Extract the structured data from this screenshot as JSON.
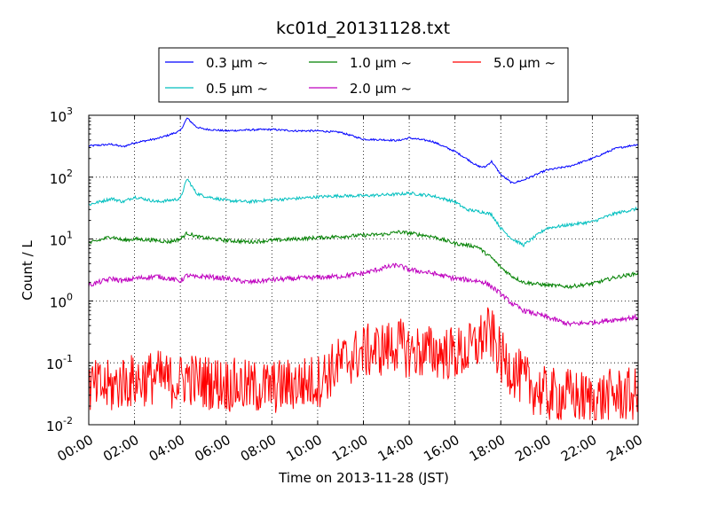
{
  "chart_data": {
    "type": "line",
    "title": "kc01d_20131128.txt",
    "xlabel": "Time on 2013-11-28 (JST)",
    "ylabel": "Count / L",
    "xlim": [
      "00:00",
      "24:00"
    ],
    "ylim": [
      0.01,
      1000
    ],
    "y_scale": "log",
    "grid": true,
    "legend_position": "top-center, above plot",
    "x_tick_labels": [
      "00:00",
      "02:00",
      "04:00",
      "06:00",
      "08:00",
      "10:00",
      "12:00",
      "14:00",
      "16:00",
      "18:00",
      "20:00",
      "22:00",
      "24:00"
    ],
    "y_tick_labels": [
      {
        "base": "10",
        "exp": "-2"
      },
      {
        "base": "10",
        "exp": "-1"
      },
      {
        "base": "10",
        "exp": "0"
      },
      {
        "base": "10",
        "exp": "1"
      },
      {
        "base": "10",
        "exp": "2"
      },
      {
        "base": "10",
        "exp": "3"
      }
    ],
    "x_hours": [
      0,
      1,
      1.5,
      2,
      3,
      3.5,
      4,
      4.3,
      4.7,
      5,
      6,
      7,
      8,
      9,
      10,
      11,
      12,
      13,
      13.5,
      14,
      15,
      16,
      16.5,
      17,
      17.3,
      17.6,
      18,
      18.5,
      19,
      20,
      21,
      22,
      23,
      24
    ],
    "series": [
      {
        "name": "0.3 μm ~",
        "color": "#0000ff",
        "values": [
          320,
          340,
          310,
          360,
          420,
          480,
          560,
          900,
          650,
          600,
          560,
          580,
          590,
          560,
          560,
          530,
          410,
          400,
          390,
          430,
          380,
          260,
          200,
          150,
          145,
          180,
          110,
          80,
          90,
          130,
          150,
          200,
          290,
          340
        ]
      },
      {
        "name": "0.5 μm ~",
        "color": "#00bfbf",
        "values": [
          36,
          45,
          40,
          48,
          40,
          42,
          45,
          95,
          55,
          50,
          42,
          40,
          43,
          45,
          48,
          50,
          50,
          52,
          53,
          55,
          50,
          40,
          30,
          28,
          27,
          25,
          15,
          10,
          8,
          15,
          17,
          19,
          26,
          31
        ]
      },
      {
        "name": "1.0 μm ~",
        "color": "#008000",
        "values": [
          8.5,
          11,
          9.5,
          10,
          9.5,
          9,
          10,
          12.5,
          11,
          10.5,
          9.5,
          9,
          9.5,
          10,
          10.5,
          11,
          11.5,
          12,
          13,
          12.5,
          11,
          8.5,
          8,
          7.5,
          6,
          5,
          3.5,
          2.5,
          2,
          1.8,
          1.7,
          1.9,
          2.4,
          2.8
        ]
      },
      {
        "name": "2.0 μm ~",
        "color": "#bf00bf",
        "values": [
          1.8,
          2.3,
          2.1,
          2.3,
          2.5,
          2.3,
          2.1,
          2.6,
          2.4,
          2.5,
          2.3,
          2.0,
          2.2,
          2.3,
          2.4,
          2.5,
          2.8,
          3.5,
          3.8,
          3.2,
          2.8,
          2.3,
          2.2,
          2.1,
          2.0,
          1.7,
          1.3,
          0.9,
          0.7,
          0.55,
          0.42,
          0.45,
          0.5,
          0.55
        ]
      },
      {
        "name": "5.0 μm ~",
        "color": "#ff0000",
        "values": [
          0.04,
          0.04,
          0.05,
          0.05,
          0.06,
          0.05,
          0.05,
          0.06,
          0.05,
          0.05,
          0.045,
          0.04,
          0.04,
          0.045,
          0.05,
          0.1,
          0.15,
          0.17,
          0.2,
          0.15,
          0.15,
          0.14,
          0.15,
          0.2,
          0.3,
          0.28,
          0.12,
          0.08,
          0.05,
          0.03,
          0.03,
          0.025,
          0.03,
          0.03
        ]
      }
    ]
  }
}
